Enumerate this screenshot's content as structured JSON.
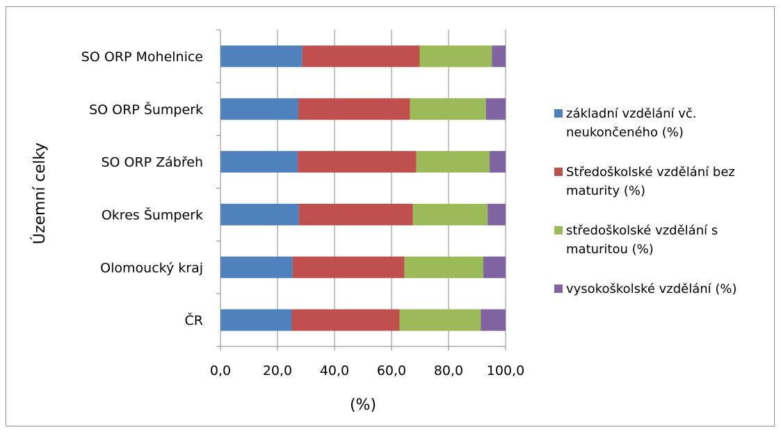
{
  "chart_data": {
    "type": "bar",
    "orientation": "horizontal",
    "stacked": "percent",
    "categories": [
      "SO ORP Mohelnice",
      "SO ORP Šumperk",
      "SO ORP Zábřeh",
      "Okres Šumperk",
      "Olomoucký kraj",
      "ČR"
    ],
    "series": [
      {
        "name": "základní vzdělání vč. neukončeného (%)",
        "color": "#4F81BD",
        "values": [
          28.7,
          27.3,
          27.1,
          27.5,
          25.3,
          25.0
        ]
      },
      {
        "name": "Středoškolské vzdělání bez maturity (%)",
        "color": "#C0504D",
        "values": [
          41.2,
          39.2,
          41.6,
          40.0,
          39.2,
          37.8
        ]
      },
      {
        "name": "středoškolské vzdělání s maturitou (%)",
        "color": "#9BBB59",
        "values": [
          25.3,
          26.6,
          25.7,
          26.2,
          27.7,
          28.5
        ]
      },
      {
        "name": "vysokoškolské vzdělání (%)",
        "color": "#8064A2",
        "values": [
          4.8,
          6.9,
          5.6,
          6.3,
          7.8,
          8.7
        ]
      }
    ],
    "xlabel": "(%)",
    "ylabel": "Územní celky",
    "xlim": [
      0,
      100
    ],
    "xticks": [
      "0,0",
      "20,0",
      "40,0",
      "60,0",
      "80,0",
      "100,0"
    ],
    "grid": "vertical",
    "legend": "right"
  }
}
